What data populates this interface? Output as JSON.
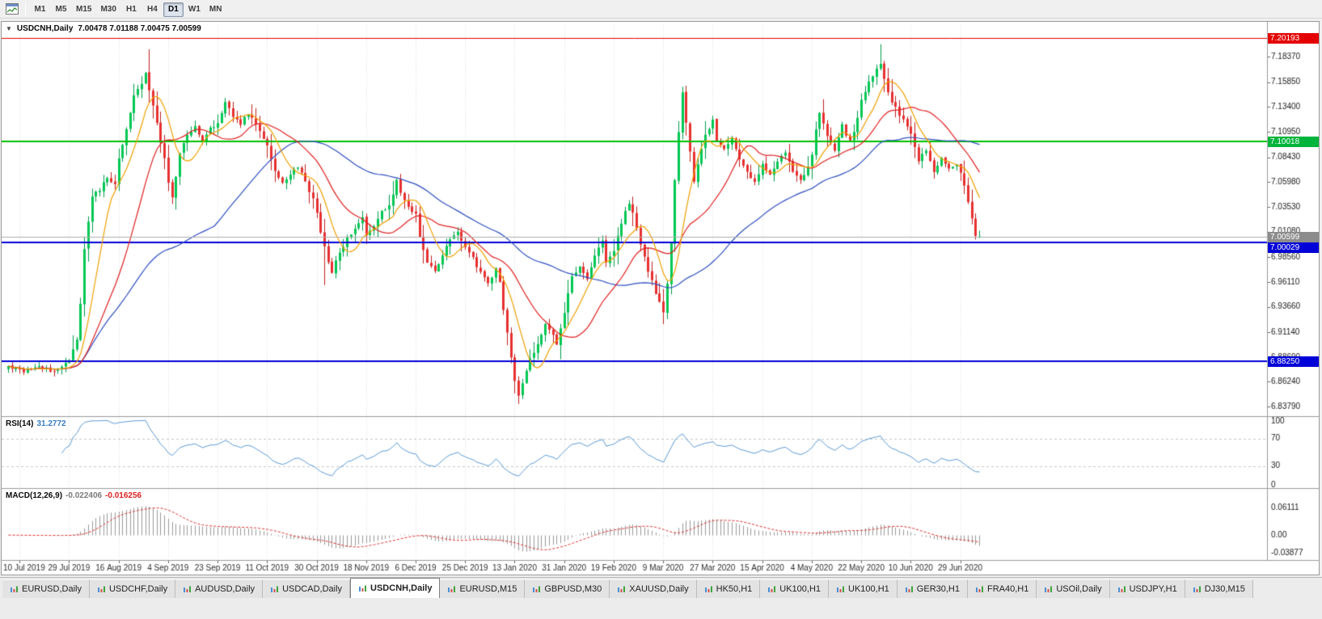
{
  "toolbar": {
    "periods": [
      {
        "label": "M1",
        "active": false
      },
      {
        "label": "M5",
        "active": false
      },
      {
        "label": "M15",
        "active": false
      },
      {
        "label": "M30",
        "active": false
      },
      {
        "label": "H1",
        "active": false
      },
      {
        "label": "H4",
        "active": false
      },
      {
        "label": "D1",
        "active": true
      },
      {
        "label": "W1",
        "active": false
      },
      {
        "label": "MN",
        "active": false
      }
    ]
  },
  "chart": {
    "symbol_period": "USDCNH,Daily",
    "ohlc_text": "7.00478 7.01188 7.00475 7.00599",
    "collapse_glyph": "▼"
  },
  "rsi_panel": {
    "name": "RSI(14)",
    "value": "31.2772",
    "levels": [
      "100",
      "70",
      "30",
      "0"
    ]
  },
  "macd_panel": {
    "name": "MACD(12,26,9)",
    "main_value": "-0.022406",
    "signal_value": "-0.016256",
    "axis": [
      "0.06111",
      "0.00",
      "-0.03877"
    ]
  },
  "price_axis": {
    "ticks": [
      "7.18370",
      "7.15850",
      "7.13400",
      "7.10950",
      "7.08430",
      "7.05980",
      "7.03530",
      "7.01080",
      "6.98560",
      "6.96110",
      "6.93660",
      "6.91140",
      "6.88690",
      "6.86240",
      "6.83790"
    ],
    "tags": [
      {
        "value": "7.20193",
        "price": 7.20193,
        "color": "#e40000",
        "interactable": true
      },
      {
        "value": "7.10018",
        "price": 7.10018,
        "color": "#00b43c",
        "interactable": true
      },
      {
        "value": "7.00599",
        "price": 7.00599,
        "color": "#8c8c8c",
        "interactable": false
      },
      {
        "value": "7.00029",
        "price": 7.00029,
        "color": "#0000d8",
        "interactable": true
      },
      {
        "value": "6.88250",
        "price": 6.8825,
        "color": "#0000d8",
        "interactable": true
      }
    ]
  },
  "tabs": [
    {
      "label": "EURUSD,Daily",
      "active": false
    },
    {
      "label": "USDCHF,Daily",
      "active": false
    },
    {
      "label": "AUDUSD,Daily",
      "active": false
    },
    {
      "label": "USDCAD,Daily",
      "active": false
    },
    {
      "label": "USDCNH,Daily",
      "active": true
    },
    {
      "label": "EURUSD,M15",
      "active": false
    },
    {
      "label": "GBPUSD,M30",
      "active": false
    },
    {
      "label": "XAUUSD,Daily",
      "active": false
    },
    {
      "label": "HK50,H1",
      "active": false
    },
    {
      "label": "UK100,H1",
      "active": false
    },
    {
      "label": "UK100,H1",
      "active": false
    },
    {
      "label": "GER30,H1",
      "active": false
    },
    {
      "label": "FRA40,H1",
      "active": false
    },
    {
      "label": "USOil,Daily",
      "active": false
    },
    {
      "label": "USDJPY,H1",
      "active": false
    },
    {
      "label": "DJ30,M15",
      "active": false
    }
  ],
  "chart_data": {
    "type": "candlestick",
    "symbol": "USDCNH",
    "timeframe": "Daily",
    "ylim": [
      6.83,
      7.215
    ],
    "candle_count": 256,
    "first_x": 8,
    "x_step": 4.71,
    "x_tick_indices": [
      3,
      16,
      29,
      42,
      55,
      68,
      81,
      94,
      107,
      120,
      133,
      146,
      159,
      172,
      185,
      198,
      211,
      224,
      237,
      250
    ],
    "x_tick_labels": [
      "10 Jul 2019",
      "29 Jul 2019",
      "16 Aug 2019",
      "4 Sep 2019",
      "23 Sep 2019",
      "11 Oct 2019",
      "30 Oct 2019",
      "18 Nov 2019",
      "6 Dec 2019",
      "25 Dec 2019",
      "13 Jan 2020",
      "31 Jan 2020",
      "19 Feb 2020",
      "9 Mar 2020",
      "27 Mar 2020",
      "15 Apr 2020",
      "4 May 2020",
      "22 May 2020",
      "10 Jun 2020",
      "29 Jun 2020"
    ],
    "horizontal_lines": [
      {
        "price": 7.20193,
        "color": "#e40000",
        "width": 1
      },
      {
        "price": 7.10018,
        "color": "#00c000",
        "width": 2
      },
      {
        "price": 7.00029,
        "color": "#0000d8",
        "width": 2
      },
      {
        "price": 6.8825,
        "color": "#0000d8",
        "width": 2
      }
    ],
    "current_price": 7.00599,
    "last_candle": {
      "o": 7.00478,
      "h": 7.01188,
      "l": 7.00475,
      "c": 7.00599
    },
    "close_waypoints": [
      [
        0,
        6.878
      ],
      [
        4,
        6.8735
      ],
      [
        8,
        6.8775
      ],
      [
        12,
        6.8715
      ],
      [
        15,
        6.88
      ],
      [
        16,
        6.884
      ],
      [
        18,
        6.905
      ],
      [
        19,
        6.938
      ],
      [
        20,
        6.992
      ],
      [
        21,
        7.022
      ],
      [
        22,
        7.046
      ],
      [
        24,
        7.052
      ],
      [
        26,
        7.064
      ],
      [
        28,
        7.056
      ],
      [
        29,
        7.083
      ],
      [
        31,
        7.112
      ],
      [
        33,
        7.146
      ],
      [
        35,
        7.158
      ],
      [
        36,
        7.168
      ],
      [
        37,
        7.15
      ],
      [
        39,
        7.118
      ],
      [
        41,
        7.082
      ],
      [
        42,
        7.06
      ],
      [
        43,
        7.044
      ],
      [
        45,
        7.088
      ],
      [
        47,
        7.106
      ],
      [
        49,
        7.116
      ],
      [
        51,
        7.098
      ],
      [
        53,
        7.112
      ],
      [
        55,
        7.12
      ],
      [
        57,
        7.138
      ],
      [
        59,
        7.126
      ],
      [
        61,
        7.118
      ],
      [
        63,
        7.128
      ],
      [
        65,
        7.115
      ],
      [
        68,
        7.096
      ],
      [
        70,
        7.07
      ],
      [
        72,
        7.06
      ],
      [
        74,
        7.068
      ],
      [
        76,
        7.075
      ],
      [
        78,
        7.06
      ],
      [
        80,
        7.042
      ],
      [
        81,
        7.03
      ],
      [
        82,
        7.008
      ],
      [
        84,
        6.982
      ],
      [
        85,
        6.972
      ],
      [
        87,
        6.99
      ],
      [
        89,
        7.004
      ],
      [
        91,
        7.015
      ],
      [
        93,
        7.026
      ],
      [
        94,
        7.008
      ],
      [
        96,
        7.016
      ],
      [
        98,
        7.03
      ],
      [
        100,
        7.036
      ],
      [
        102,
        7.062
      ],
      [
        103,
        7.048
      ],
      [
        105,
        7.036
      ],
      [
        107,
        7.028
      ],
      [
        108,
        7.005
      ],
      [
        110,
        6.98
      ],
      [
        112,
        6.972
      ],
      [
        114,
        6.988
      ],
      [
        116,
        7.002
      ],
      [
        118,
        7.01
      ],
      [
        120,
        6.996
      ],
      [
        122,
        6.985
      ],
      [
        124,
        6.97
      ],
      [
        126,
        6.96
      ],
      [
        128,
        6.974
      ],
      [
        129,
        6.962
      ],
      [
        130,
        6.935
      ],
      [
        131,
        6.912
      ],
      [
        132,
        6.885
      ],
      [
        133,
        6.862
      ],
      [
        134,
        6.848
      ],
      [
        135,
        6.86
      ],
      [
        137,
        6.884
      ],
      [
        139,
        6.9
      ],
      [
        141,
        6.918
      ],
      [
        143,
        6.91
      ],
      [
        144,
        6.898
      ],
      [
        146,
        6.93
      ],
      [
        148,
        6.968
      ],
      [
        150,
        6.975
      ],
      [
        152,
        6.962
      ],
      [
        154,
        6.988
      ],
      [
        156,
        7.0
      ],
      [
        157,
        6.982
      ],
      [
        159,
        6.992
      ],
      [
        161,
        7.02
      ],
      [
        163,
        7.04
      ],
      [
        164,
        7.028
      ],
      [
        166,
        6.998
      ],
      [
        168,
        6.972
      ],
      [
        170,
        6.95
      ],
      [
        172,
        6.93
      ],
      [
        173,
        6.958
      ],
      [
        174,
        7.0
      ],
      [
        175,
        7.06
      ],
      [
        176,
        7.11
      ],
      [
        177,
        7.148
      ],
      [
        178,
        7.118
      ],
      [
        179,
        7.092
      ],
      [
        180,
        7.062
      ],
      [
        181,
        7.078
      ],
      [
        183,
        7.105
      ],
      [
        185,
        7.122
      ],
      [
        186,
        7.098
      ],
      [
        188,
        7.092
      ],
      [
        190,
        7.102
      ],
      [
        192,
        7.082
      ],
      [
        194,
        7.07
      ],
      [
        196,
        7.06
      ],
      [
        198,
        7.076
      ],
      [
        200,
        7.066
      ],
      [
        202,
        7.08
      ],
      [
        204,
        7.09
      ],
      [
        206,
        7.07
      ],
      [
        208,
        7.06
      ],
      [
        210,
        7.075
      ],
      [
        211,
        7.086
      ],
      [
        212,
        7.11
      ],
      [
        213,
        7.13
      ],
      [
        214,
        7.118
      ],
      [
        215,
        7.105
      ],
      [
        217,
        7.09
      ],
      [
        219,
        7.115
      ],
      [
        221,
        7.1
      ],
      [
        223,
        7.122
      ],
      [
        224,
        7.14
      ],
      [
        226,
        7.158
      ],
      [
        228,
        7.172
      ],
      [
        229,
        7.178
      ],
      [
        230,
        7.16
      ],
      [
        232,
        7.14
      ],
      [
        234,
        7.125
      ],
      [
        236,
        7.115
      ],
      [
        237,
        7.106
      ],
      [
        239,
        7.082
      ],
      [
        241,
        7.092
      ],
      [
        243,
        7.07
      ],
      [
        245,
        7.082
      ],
      [
        247,
        7.074
      ],
      [
        249,
        7.078
      ],
      [
        250,
        7.068
      ],
      [
        251,
        7.058
      ],
      [
        252,
        7.04
      ],
      [
        253,
        7.022
      ],
      [
        254,
        7.008
      ],
      [
        255,
        7.006
      ]
    ],
    "forced_wicks": [
      {
        "i": 37,
        "high": 7.191
      },
      {
        "i": 83,
        "low": 6.958
      },
      {
        "i": 134,
        "low": 6.8405
      },
      {
        "i": 229,
        "high": 7.196
      }
    ],
    "moving_averages": [
      {
        "period": 55,
        "color": "#3050c0"
      },
      {
        "period": 20,
        "color": "#e02020"
      },
      {
        "period": 8,
        "color": "#f0a000"
      }
    ],
    "indicators": [
      {
        "type": "RSI",
        "period": 14,
        "current": 31.2772
      },
      {
        "type": "MACD",
        "fast": 12,
        "slow": 26,
        "signal": 9,
        "current_main": -0.022406,
        "current_signal": -0.016256
      }
    ]
  }
}
